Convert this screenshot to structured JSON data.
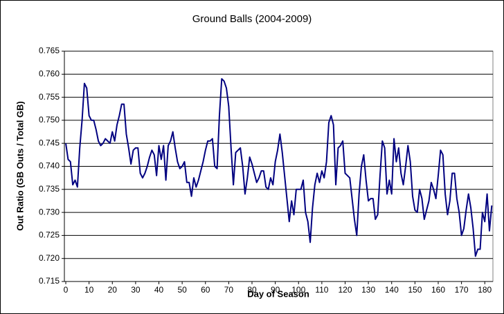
{
  "chart_data": {
    "type": "line",
    "title": "Ground Balls (2004-2009)",
    "x_label": "Day of Season",
    "y_label": "Out Ratio (GB Outs / Total GB)",
    "x": [
      0,
      1,
      2,
      3,
      4,
      5,
      6,
      7,
      8,
      9,
      10,
      11,
      12,
      13,
      14,
      15,
      16,
      17,
      18,
      19,
      20,
      21,
      22,
      23,
      24,
      25,
      26,
      27,
      28,
      29,
      30,
      31,
      32,
      33,
      34,
      35,
      36,
      37,
      38,
      39,
      40,
      41,
      42,
      43,
      44,
      45,
      46,
      47,
      48,
      49,
      50,
      51,
      52,
      53,
      54,
      55,
      56,
      57,
      58,
      59,
      60,
      61,
      62,
      63,
      64,
      65,
      66,
      67,
      68,
      69,
      70,
      71,
      72,
      73,
      74,
      75,
      76,
      77,
      78,
      79,
      80,
      81,
      82,
      83,
      84,
      85,
      86,
      87,
      88,
      89,
      90,
      91,
      92,
      93,
      94,
      95,
      96,
      97,
      98,
      99,
      100,
      101,
      102,
      103,
      104,
      105,
      106,
      107,
      108,
      109,
      110,
      111,
      112,
      113,
      114,
      115,
      116,
      117,
      118,
      119,
      120,
      121,
      122,
      123,
      124,
      125,
      126,
      127,
      128,
      129,
      130,
      131,
      132,
      133,
      134,
      135,
      136,
      137,
      138,
      139,
      140,
      141,
      142,
      143,
      144,
      145,
      146,
      147,
      148,
      149,
      150,
      151,
      152,
      153,
      154,
      155,
      156,
      157,
      158,
      159,
      160,
      161,
      162,
      163,
      164,
      165,
      166,
      167,
      168,
      169,
      170,
      171,
      172,
      173,
      174,
      175,
      176,
      177,
      178,
      179,
      180,
      181,
      182,
      183
    ],
    "series": [
      {
        "name": "Out Ratio",
        "color": "#000080",
        "values": [
          0.745,
          0.7415,
          0.741,
          0.736,
          0.737,
          0.7355,
          0.744,
          0.75,
          0.758,
          0.757,
          0.751,
          0.75,
          0.75,
          0.748,
          0.7455,
          0.7445,
          0.745,
          0.746,
          0.7455,
          0.745,
          0.7475,
          0.7455,
          0.749,
          0.751,
          0.7535,
          0.7535,
          0.747,
          0.744,
          0.7405,
          0.7435,
          0.744,
          0.744,
          0.7385,
          0.7375,
          0.7385,
          0.74,
          0.742,
          0.7435,
          0.7425,
          0.738,
          0.7445,
          0.7415,
          0.7445,
          0.737,
          0.7445,
          0.7455,
          0.7475,
          0.744,
          0.741,
          0.7395,
          0.74,
          0.741,
          0.7365,
          0.7365,
          0.7335,
          0.7375,
          0.7355,
          0.737,
          0.739,
          0.741,
          0.7435,
          0.7455,
          0.7455,
          0.746,
          0.74,
          0.7395,
          0.751,
          0.759,
          0.7585,
          0.757,
          0.753,
          0.744,
          0.736,
          0.743,
          0.7435,
          0.744,
          0.74,
          0.734,
          0.7375,
          0.742,
          0.7405,
          0.7385,
          0.7365,
          0.7375,
          0.739,
          0.739,
          0.7355,
          0.735,
          0.7375,
          0.736,
          0.741,
          0.7435,
          0.747,
          0.743,
          0.738,
          0.733,
          0.728,
          0.7325,
          0.7295,
          0.735,
          0.735,
          0.735,
          0.737,
          0.73,
          0.728,
          0.7235,
          0.731,
          0.736,
          0.7385,
          0.7365,
          0.739,
          0.7375,
          0.741,
          0.7495,
          0.751,
          0.749,
          0.736,
          0.744,
          0.7445,
          0.7455,
          0.7385,
          0.738,
          0.7375,
          0.733,
          0.7285,
          0.725,
          0.734,
          0.74,
          0.7425,
          0.737,
          0.7325,
          0.733,
          0.733,
          0.7285,
          0.7295,
          0.738,
          0.7455,
          0.744,
          0.734,
          0.737,
          0.734,
          0.746,
          0.741,
          0.744,
          0.7385,
          0.736,
          0.74,
          0.7445,
          0.741,
          0.7335,
          0.7305,
          0.73,
          0.735,
          0.733,
          0.7285,
          0.7305,
          0.7325,
          0.7365,
          0.735,
          0.733,
          0.738,
          0.7435,
          0.7425,
          0.734,
          0.7295,
          0.7325,
          0.7385,
          0.7385,
          0.733,
          0.73,
          0.725,
          0.7265,
          0.7305,
          0.734,
          0.731,
          0.7265,
          0.7205,
          0.722,
          0.722,
          0.73,
          0.728,
          0.734,
          0.726,
          0.7315
        ]
      }
    ],
    "xlim": [
      -0.6,
      183.5
    ],
    "xticks": [
      0,
      10,
      20,
      30,
      40,
      50,
      60,
      70,
      80,
      90,
      100,
      110,
      120,
      130,
      140,
      150,
      160,
      170,
      180
    ],
    "ylim": [
      0.715,
      0.765
    ],
    "yticks": [
      0.715,
      {
        "value": 0.72,
        "label": "0.720"
      },
      0.725,
      {
        "value": 0.73,
        "label": "0.730"
      },
      0.735,
      {
        "value": 0.74,
        "label": "0.740"
      },
      0.745,
      {
        "value": 0.75,
        "label": "0.750"
      },
      0.755,
      {
        "value": 0.76,
        "label": "0.760"
      },
      0.765
    ],
    "grid": true
  }
}
